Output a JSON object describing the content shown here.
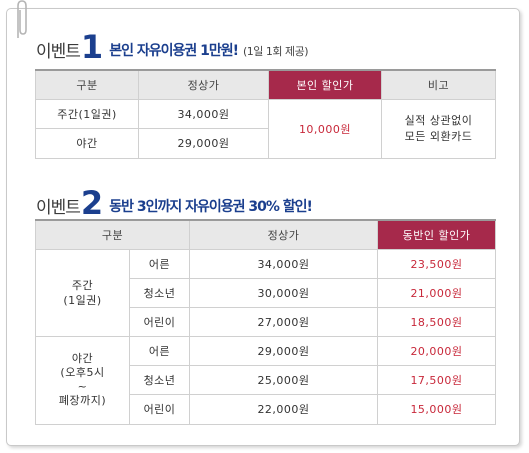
{
  "event1": {
    "label": "이벤트",
    "number": "1",
    "title": "본인 자유이용권 1만원!",
    "note": "(1일 1회 제공)",
    "headers": [
      "구분",
      "정상가",
      "본인 할인가",
      "비고"
    ],
    "rows": [
      {
        "type": "주간(1일권)",
        "price": "34,000원"
      },
      {
        "type": "야간",
        "price": "29,000원"
      }
    ],
    "discount": "10,000원",
    "remark_line1": "실적 상관없이",
    "remark_line2": "모든 외환카드"
  },
  "event2": {
    "label": "이벤트",
    "number": "2",
    "title": "동반 3인까지 자유이용권 30% 할인!",
    "headers": [
      "구분",
      "정상가",
      "동반인 할인가"
    ],
    "groups": [
      {
        "name_lines": [
          "주간",
          "(1일권)"
        ],
        "rows": [
          {
            "age": "어른",
            "price": "34,000원",
            "discount": "23,500원"
          },
          {
            "age": "청소년",
            "price": "30,000원",
            "discount": "21,000원"
          },
          {
            "age": "어린이",
            "price": "27,000원",
            "discount": "18,500원"
          }
        ]
      },
      {
        "name_lines": [
          "야간",
          "(오후5시",
          "~",
          "폐장까지)"
        ],
        "rows": [
          {
            "age": "어른",
            "price": "29,000원",
            "discount": "20,000원"
          },
          {
            "age": "청소년",
            "price": "25,000원",
            "discount": "17,500원"
          },
          {
            "age": "어린이",
            "price": "22,000원",
            "discount": "15,000원"
          }
        ]
      }
    ]
  },
  "colors": {
    "accent": "#a6294b",
    "title_blue": "#1b3f8e",
    "discount_red": "#c8283a"
  }
}
